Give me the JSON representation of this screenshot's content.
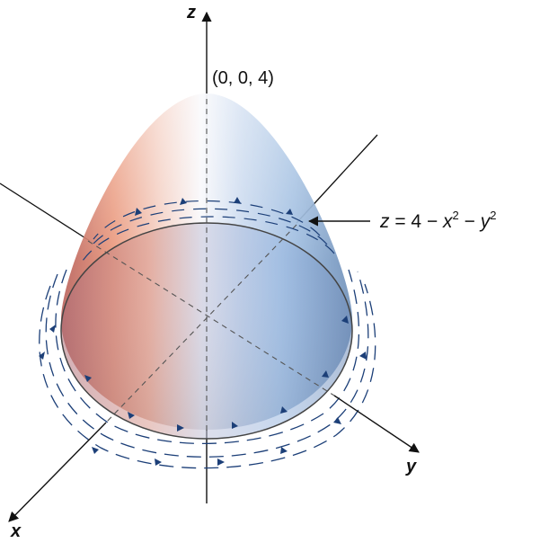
{
  "axes": {
    "x_label": "x",
    "y_label": "y",
    "z_label": "z"
  },
  "apex_label": "(0, 0, 4)",
  "surface_label": {
    "lhs": "z",
    "eq": " = 4 − ",
    "x": "x",
    "x_exp": "2",
    "minus": " − ",
    "y": "y",
    "y_exp": "2"
  },
  "colors": {
    "axis": "#111111",
    "flow_arrows": "#1c3f78",
    "surface_left": "#e9967a",
    "surface_right": "#8fb3dc"
  }
}
